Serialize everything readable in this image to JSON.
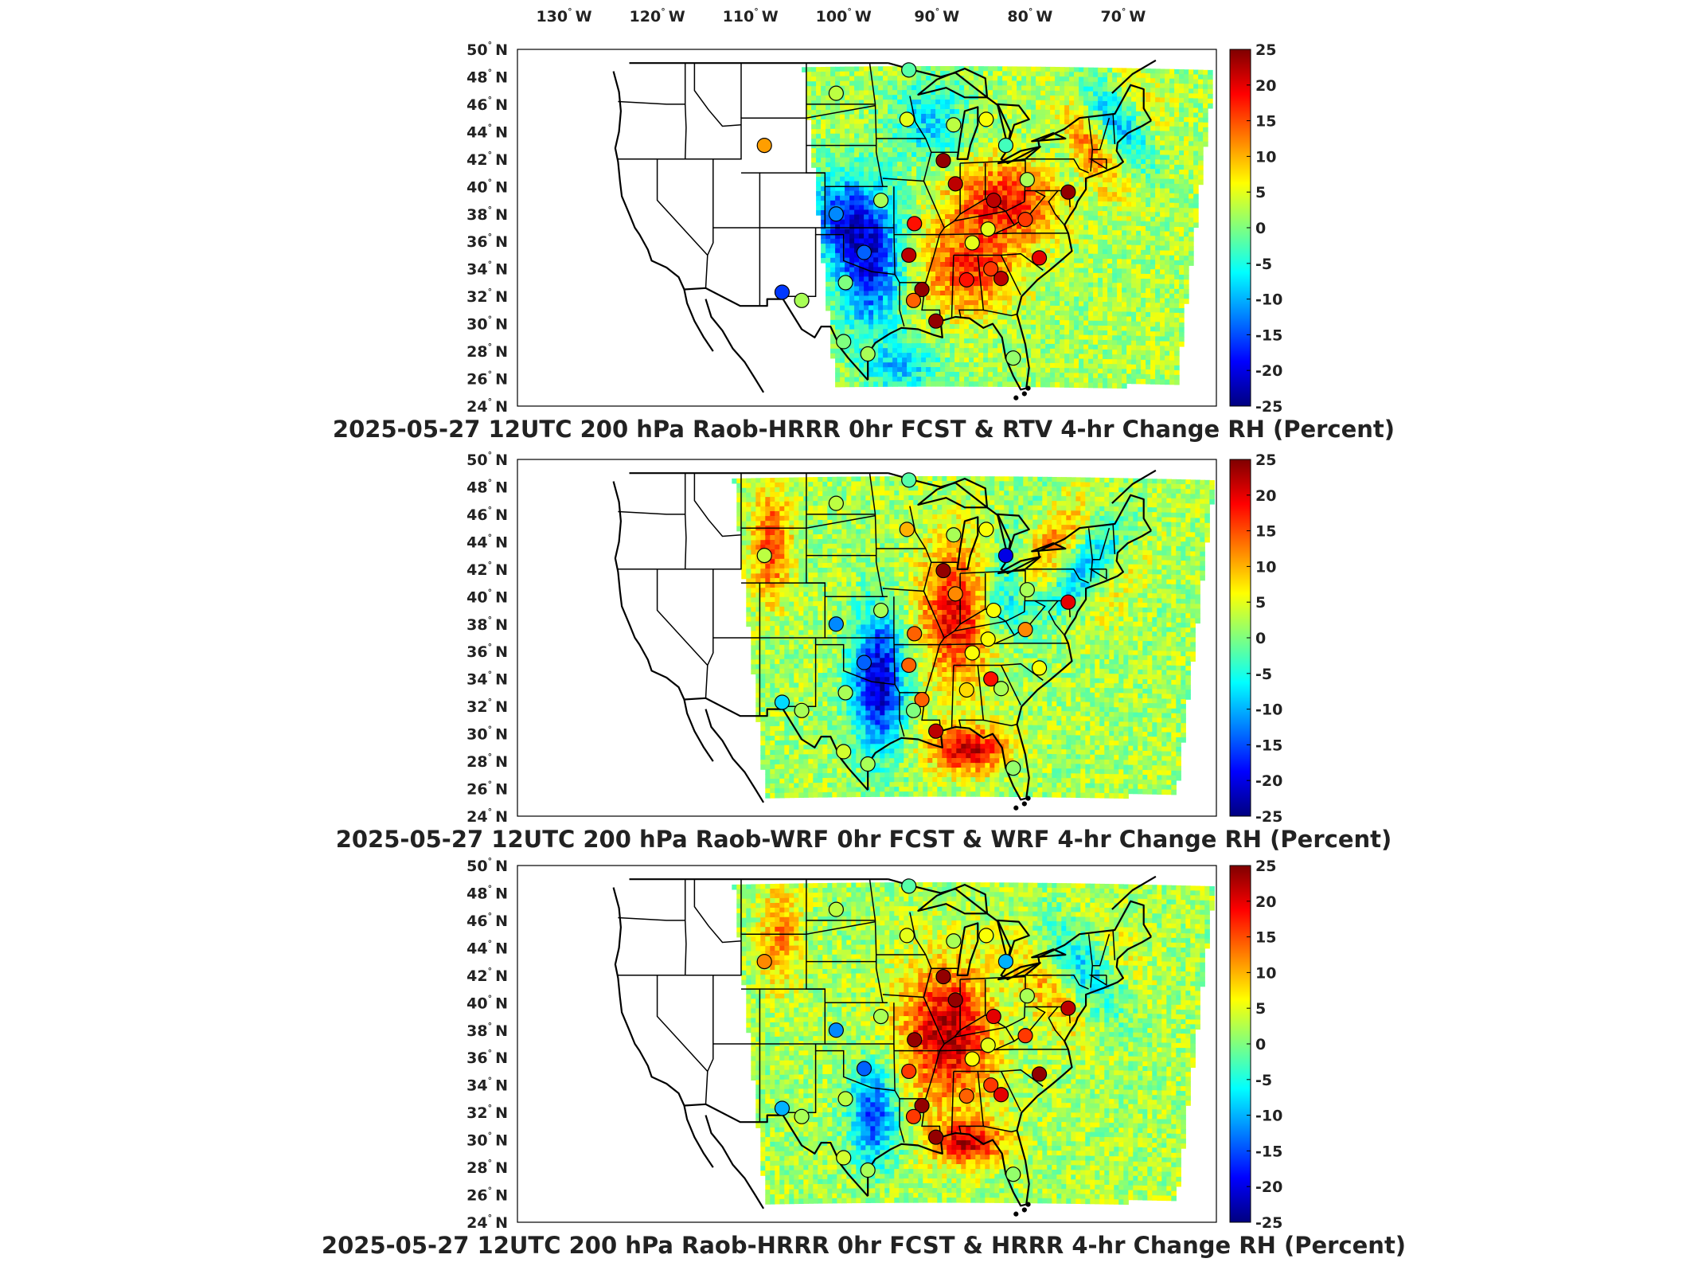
{
  "figure": {
    "lon_axis_labels": [
      {
        "deg": "130",
        "hemi": "W"
      },
      {
        "deg": "120",
        "hemi": "W"
      },
      {
        "deg": "110",
        "hemi": "W"
      },
      {
        "deg": "100",
        "hemi": "W"
      },
      {
        "deg": "90",
        "hemi": "W"
      },
      {
        "deg": "80",
        "hemi": "W"
      },
      {
        "deg": "70",
        "hemi": "W"
      }
    ],
    "lat_axis_labels": [
      {
        "deg": "50",
        "hemi": "N"
      },
      {
        "deg": "48",
        "hemi": "N"
      },
      {
        "deg": "46",
        "hemi": "N"
      },
      {
        "deg": "44",
        "hemi": "N"
      },
      {
        "deg": "42",
        "hemi": "N"
      },
      {
        "deg": "40",
        "hemi": "N"
      },
      {
        "deg": "38",
        "hemi": "N"
      },
      {
        "deg": "36",
        "hemi": "N"
      },
      {
        "deg": "34",
        "hemi": "N"
      },
      {
        "deg": "32",
        "hemi": "N"
      },
      {
        "deg": "30",
        "hemi": "N"
      },
      {
        "deg": "28",
        "hemi": "N"
      },
      {
        "deg": "26",
        "hemi": "N"
      },
      {
        "deg": "24",
        "hemi": "N"
      }
    ],
    "colorbar": {
      "ticks": [
        "25",
        "20",
        "15",
        "10",
        "5",
        "0",
        "-5",
        "-10",
        "-15",
        "-20",
        "-25"
      ],
      "range": [
        -25,
        25
      ],
      "colormap": [
        "#00007f",
        "#0000ff",
        "#007fff",
        "#00ffff",
        "#7fff7f",
        "#ffff00",
        "#ff7f00",
        "#ff0000",
        "#7f0000"
      ]
    },
    "panels": [
      {
        "title": "2025-05-27 12UTC 200 hPa Raob-HRRR 0hr FCST & RTV 4-hr Change RH (Percent)",
        "field_left_lon": -104.5,
        "station_values": [
          -2,
          3,
          11,
          5,
          3,
          6,
          -3,
          2,
          -12,
          24,
          22,
          2,
          5,
          22,
          -14,
          18,
          -16,
          22,
          5,
          24,
          2,
          0,
          18,
          16,
          0,
          14,
          24,
          22,
          20,
          2,
          16,
          1,
          24
        ]
      },
      {
        "title": "2025-05-27 12UTC 200 hPa Raob-WRF 0hr FCST & WRF 4-hr Change RH (Percent)",
        "field_left_lon": -112,
        "station_values": [
          -2,
          3,
          3,
          10,
          2,
          6,
          -20,
          2,
          -12,
          24,
          12,
          2,
          6,
          6,
          -14,
          14,
          -8,
          14,
          6,
          14,
          2,
          2,
          8,
          18,
          4,
          0,
          22,
          2,
          6,
          2,
          12,
          1,
          20
        ]
      },
      {
        "title": "2025-05-27 12UTC 200 hPa Raob-HRRR 0hr FCST & HRRR 4-hr Change RH (Percent)",
        "field_left_lon": -112,
        "station_values": [
          -2,
          3,
          12,
          5,
          2,
          6,
          -10,
          2,
          -12,
          24,
          24,
          2,
          6,
          20,
          -14,
          24,
          -10,
          16,
          5,
          24,
          2,
          3,
          14,
          16,
          4,
          16,
          24,
          20,
          24,
          2,
          16,
          1,
          22
        ]
      }
    ]
  }
}
